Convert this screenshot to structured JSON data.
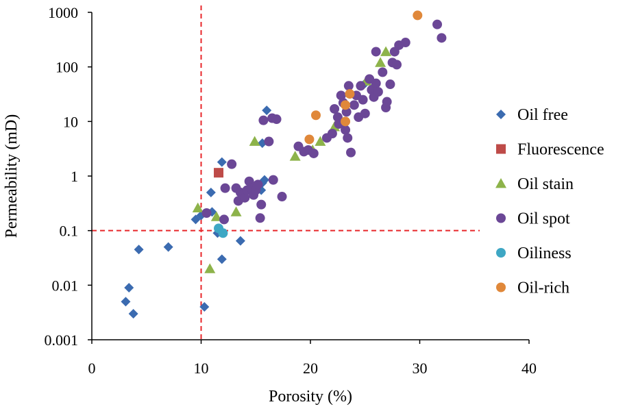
{
  "chart_data": {
    "type": "scatter",
    "title": "",
    "xlabel": "Porosity (%)",
    "ylabel": "Permeability (mD)",
    "xlim": [
      0,
      40
    ],
    "ylim": [
      0.001,
      1000
    ],
    "y_scale": "log",
    "grid": false,
    "legend_position": "right",
    "x_ticks": [
      {
        "value": 0,
        "label": "0"
      },
      {
        "value": 10,
        "label": "10"
      },
      {
        "value": 20,
        "label": "20"
      },
      {
        "value": 30,
        "label": "30"
      },
      {
        "value": 40,
        "label": "40"
      }
    ],
    "y_ticks": [
      {
        "value": 0.001,
        "label": "0.001"
      },
      {
        "value": 0.01,
        "label": "0.01"
      },
      {
        "value": 0.1,
        "label": "0.1"
      },
      {
        "value": 1,
        "label": "1"
      },
      {
        "value": 10,
        "label": "10"
      },
      {
        "value": 100,
        "label": "100"
      },
      {
        "value": 1000,
        "label": "1000"
      }
    ],
    "reference_lines": [
      {
        "orientation": "vertical",
        "value": 10,
        "color": "#e8262a",
        "style": "dashed"
      },
      {
        "orientation": "horizontal",
        "value": 0.1,
        "color": "#e8262a",
        "style": "dashed"
      }
    ],
    "series": [
      {
        "name": "Oil free",
        "marker": "diamond",
        "color": "#3b6bb0",
        "points": [
          [
            3.1,
            0.005
          ],
          [
            3.4,
            0.009
          ],
          [
            3.8,
            0.003
          ],
          [
            4.3,
            0.045
          ],
          [
            7.0,
            0.05
          ],
          [
            10.3,
            0.004
          ],
          [
            9.5,
            0.16
          ],
          [
            10.0,
            0.19
          ],
          [
            10.9,
            0.5
          ],
          [
            11.0,
            0.22
          ],
          [
            11.5,
            0.09
          ],
          [
            11.9,
            0.03
          ],
          [
            11.9,
            1.8
          ],
          [
            13.6,
            0.065
          ],
          [
            15.5,
            0.55
          ],
          [
            15.6,
            0.75
          ],
          [
            15.8,
            0.85
          ],
          [
            15.6,
            4.0
          ],
          [
            16.0,
            16.0
          ],
          [
            25.0,
            50.0
          ],
          [
            25.6,
            40.0
          ]
        ]
      },
      {
        "name": "Fluorescence",
        "marker": "square",
        "color": "#be4b48",
        "points": [
          [
            11.6,
            1.15
          ]
        ]
      },
      {
        "name": "Oil stain",
        "marker": "triangle",
        "color": "#8db34a",
        "points": [
          [
            9.7,
            0.26
          ],
          [
            10.8,
            0.02
          ],
          [
            11.4,
            0.18
          ],
          [
            13.2,
            0.22
          ],
          [
            14.9,
            4.3
          ],
          [
            18.6,
            2.3
          ],
          [
            20.2,
            3.0
          ],
          [
            20.9,
            4.3
          ],
          [
            22.2,
            8.0
          ],
          [
            25.1,
            55.0
          ],
          [
            26.4,
            120.0
          ],
          [
            26.9,
            190.0
          ]
        ]
      },
      {
        "name": "Oil spot",
        "marker": "circle",
        "color": "#6b4796",
        "points": [
          [
            10.5,
            0.21
          ],
          [
            12.1,
            0.16
          ],
          [
            12.2,
            0.6
          ],
          [
            12.8,
            1.65
          ],
          [
            13.2,
            0.6
          ],
          [
            13.4,
            0.35
          ],
          [
            13.6,
            0.5
          ],
          [
            13.8,
            0.45
          ],
          [
            14.0,
            0.4
          ],
          [
            14.2,
            0.55
          ],
          [
            14.4,
            0.8
          ],
          [
            14.6,
            0.6
          ],
          [
            14.8,
            0.45
          ],
          [
            15.0,
            0.55
          ],
          [
            15.2,
            0.7
          ],
          [
            15.4,
            0.17
          ],
          [
            15.5,
            0.3
          ],
          [
            15.7,
            10.5
          ],
          [
            16.2,
            4.3
          ],
          [
            16.5,
            11.5
          ],
          [
            16.6,
            0.85
          ],
          [
            16.9,
            11.0
          ],
          [
            17.4,
            0.42
          ],
          [
            18.9,
            3.5
          ],
          [
            19.4,
            2.8
          ],
          [
            19.8,
            3.0
          ],
          [
            20.3,
            2.6
          ],
          [
            21.5,
            5.0
          ],
          [
            22.0,
            6.0
          ],
          [
            22.2,
            17.0
          ],
          [
            22.5,
            12.0
          ],
          [
            22.6,
            9.0
          ],
          [
            22.8,
            30.0
          ],
          [
            23.0,
            22.0
          ],
          [
            23.2,
            7.0
          ],
          [
            23.3,
            15.0
          ],
          [
            23.4,
            5.0
          ],
          [
            23.5,
            45.0
          ],
          [
            23.7,
            2.7
          ],
          [
            24.0,
            20.0
          ],
          [
            24.2,
            30.0
          ],
          [
            24.4,
            12.0
          ],
          [
            24.6,
            45.0
          ],
          [
            24.8,
            25.0
          ],
          [
            25.0,
            14.0
          ],
          [
            25.4,
            60.0
          ],
          [
            25.6,
            38.0
          ],
          [
            25.8,
            28.0
          ],
          [
            26.0,
            50.0
          ],
          [
            26.2,
            35.0
          ],
          [
            26.6,
            80.0
          ],
          [
            26.9,
            18.0
          ],
          [
            27.0,
            23.0
          ],
          [
            27.3,
            48.0
          ],
          [
            27.5,
            120.0
          ],
          [
            27.7,
            190.0
          ],
          [
            27.9,
            110.0
          ],
          [
            28.1,
            250.0
          ],
          [
            28.7,
            280.0
          ],
          [
            26.0,
            190.0
          ],
          [
            31.6,
            600.0
          ],
          [
            32.0,
            340.0
          ]
        ]
      },
      {
        "name": "Oiliness",
        "marker": "circle",
        "color": "#3ea7c4",
        "points": [
          [
            11.6,
            0.11
          ],
          [
            12.0,
            0.09
          ]
        ]
      },
      {
        "name": "Oil-rich",
        "marker": "circle",
        "color": "#e0883a",
        "points": [
          [
            19.9,
            4.7
          ],
          [
            20.5,
            13.0
          ],
          [
            23.2,
            20.0
          ],
          [
            23.2,
            10.0
          ],
          [
            23.6,
            32.0
          ],
          [
            29.8,
            880.0
          ]
        ]
      }
    ]
  }
}
